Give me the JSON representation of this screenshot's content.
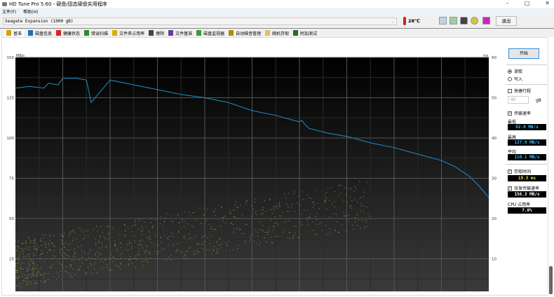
{
  "window": {
    "title": "HD Tune Pro 5.60 - 硬盘/固态硬盘实用程序"
  },
  "menu": [
    "文件(F)",
    "帮助(H)"
  ],
  "toolbar": {
    "drive": "Seagate Expansion (1000 gB)",
    "temperature": "28℃",
    "exit_label": "退出",
    "icons": [
      "copy-icon",
      "copy-green-icon",
      "camera-icon",
      "options-icon",
      "save-icon"
    ]
  },
  "tabs": [
    {
      "label": "基准",
      "color": "#d4a000"
    },
    {
      "label": "磁盘信息",
      "color": "#1e6fb8"
    },
    {
      "label": "健康状态",
      "color": "#d22"
    },
    {
      "label": "错误扫描",
      "color": "#2a8a2a"
    },
    {
      "label": "文件夹占用率",
      "color": "#d4b000"
    },
    {
      "label": "擦除",
      "color": "#444"
    },
    {
      "label": "文件基准",
      "color": "#6a3d9a"
    },
    {
      "label": "磁盘监视器",
      "color": "#3a9a3a"
    },
    {
      "label": "自动噪音管理",
      "color": "#b08a00"
    },
    {
      "label": "随机存取",
      "color": "#e0c060"
    },
    {
      "label": "附加测试",
      "color": "#2a6a2a"
    }
  ],
  "side": {
    "start": "开始",
    "read": "读取",
    "write": "写入",
    "read_selected": true,
    "short_stroke": "快捷行程",
    "short_stroke_checked": false,
    "short_stroke_value": "40",
    "unit": "gB",
    "transfer_rate": "传输速率",
    "transfer_checked": true,
    "min_label": "最低",
    "min": "62.8 MB/s",
    "max_label": "最高",
    "max": "137.9 MB/s",
    "avg_label": "平均",
    "avg": "110.1 MB/s",
    "access_label": "存取时间",
    "access_checked": true,
    "access": "19.3 ms",
    "burst_label": "突发传输速率",
    "burst_checked": true,
    "burst": "156.3 MB/s",
    "cpu_label": "CPU 占用率",
    "cpu": "7.0%"
  },
  "chart_data": {
    "type": "line",
    "ylabel": "MB/s",
    "y2label": "ms",
    "ylim": [
      0,
      150
    ],
    "y2lim": [
      0,
      60
    ],
    "yticks": [
      25,
      50,
      75,
      100,
      125,
      150
    ],
    "y2ticks": [
      10,
      20,
      30,
      40,
      50,
      60
    ],
    "grid": true,
    "series": [
      {
        "values_x_percent": [
          0,
          3,
          6,
          7,
          9,
          10,
          13,
          15,
          16,
          20,
          25,
          30,
          35,
          40,
          45,
          50,
          55,
          60,
          60.5,
          61,
          62,
          66,
          70,
          75,
          80,
          85,
          90,
          93,
          96,
          98,
          100
        ],
        "values": [
          131,
          132,
          131,
          134,
          133,
          137,
          137,
          136,
          122,
          136,
          133,
          130,
          127,
          125,
          122,
          117,
          114,
          110,
          111,
          109,
          106,
          103,
          101,
          97,
          94,
          90,
          86,
          82,
          76,
          70,
          63
        ]
      }
    ],
    "access_scatter_ms_range": [
      5,
      30
    ],
    "colors": {
      "line": "#1f8fcf",
      "scatter": "#b8b040"
    }
  }
}
